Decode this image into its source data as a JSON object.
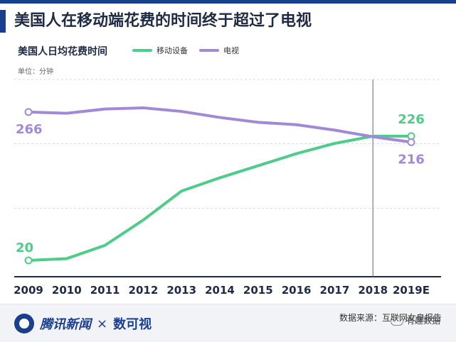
{
  "header": {
    "title": "美国人在移动端花费的时间终于超过了电视",
    "accent_color": "#1b3f8f"
  },
  "chart_data": {
    "type": "line",
    "title": "美国人日均花费时间",
    "unit_label": "单位：分钟",
    "categories": [
      "2009",
      "2010",
      "2011",
      "2012",
      "2013",
      "2014",
      "2015",
      "2016",
      "2017",
      "2018",
      "2019E"
    ],
    "series": [
      {
        "name": "移动设备",
        "color": "#4ecc8a",
        "values": [
          20,
          23,
          45,
          87,
          135,
          157,
          177,
          197,
          214,
          226,
          226
        ],
        "start_label": "20",
        "end_label": "226"
      },
      {
        "name": "电视",
        "color": "#a289d8",
        "values": [
          266,
          264,
          271,
          273,
          267,
          257,
          249,
          245,
          236,
          225,
          216
        ],
        "start_label": "266",
        "end_label": "216"
      }
    ],
    "ylim": [
      0,
      320
    ],
    "grid": "horizontal dashed",
    "legend": "top",
    "marker_category": "2018"
  },
  "footer": {
    "brand": "腾讯新闻",
    "separator": "×",
    "partner": "数可视",
    "source": "数据来源：互联网女皇报告",
    "watermark": "有趣数据"
  }
}
